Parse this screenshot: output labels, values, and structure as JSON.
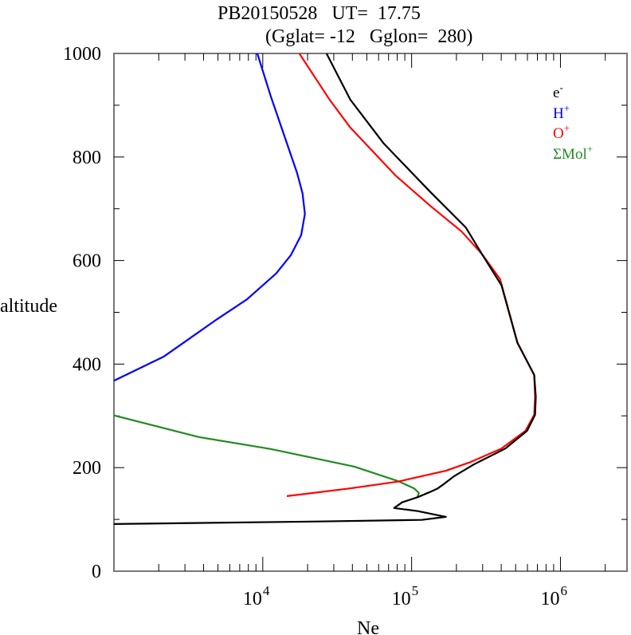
{
  "chart_data": {
    "type": "line",
    "title": "PB20150528   UT=  17.75",
    "subtitle": "(Gglat= -12   Gglon=  280)",
    "xlabel": "Ne",
    "ylabel": "altitude",
    "xscale": "log",
    "xlim": [
      1000,
      2800000
    ],
    "ylim": [
      0,
      1000
    ],
    "x_ticks": [
      {
        "value": 10000,
        "base": "10",
        "exp": "4"
      },
      {
        "value": 100000,
        "base": "10",
        "exp": "5"
      },
      {
        "value": 1000000,
        "base": "10",
        "exp": "6"
      }
    ],
    "y_ticks": [
      {
        "value": 0,
        "label": "0"
      },
      {
        "value": 200,
        "label": "200"
      },
      {
        "value": 400,
        "label": "400"
      },
      {
        "value": 600,
        "label": "600"
      },
      {
        "value": 800,
        "label": "800"
      },
      {
        "value": 1000,
        "label": "1000"
      }
    ],
    "grid": false,
    "legend_position": "top-right",
    "series": [
      {
        "name": "e-",
        "label_base": "e",
        "label_sup": "-",
        "color": "#000000",
        "points": [
          [
            26800,
            1000
          ],
          [
            38700,
            911
          ],
          [
            65000,
            826
          ],
          [
            133000,
            733
          ],
          [
            231000,
            664
          ],
          [
            296000,
            613
          ],
          [
            402000,
            552
          ],
          [
            514000,
            441
          ],
          [
            666000,
            379
          ],
          [
            683000,
            337
          ],
          [
            675000,
            302
          ],
          [
            596000,
            271
          ],
          [
            427000,
            237
          ],
          [
            261000,
            206
          ],
          [
            192000,
            183
          ],
          [
            166000,
            169
          ],
          [
            150000,
            160
          ],
          [
            133000,
            153
          ],
          [
            110000,
            143
          ],
          [
            86300,
            133
          ],
          [
            76300,
            122
          ],
          [
            110000,
            116
          ],
          [
            170000,
            105
          ],
          [
            117000,
            99
          ],
          [
            23700,
            96
          ],
          [
            1000,
            91
          ]
        ]
      },
      {
        "name": "H+",
        "label_base": "H",
        "label_sup": "+",
        "color": "#0000ff",
        "points": [
          [
            9190,
            1000
          ],
          [
            11300,
            918
          ],
          [
            17000,
            769
          ],
          [
            18500,
            730
          ],
          [
            19200,
            690
          ],
          [
            18100,
            649
          ],
          [
            15400,
            610
          ],
          [
            12300,
            575
          ],
          [
            7820,
            525
          ],
          [
            4950,
            487
          ],
          [
            2150,
            414
          ],
          [
            1000,
            368
          ]
        ]
      },
      {
        "name": "O+",
        "label_base": "O",
        "label_sup": "+",
        "color": "#ff0000",
        "points": [
          [
            17600,
            1000
          ],
          [
            28100,
            911
          ],
          [
            38700,
            857
          ],
          [
            78200,
            764
          ],
          [
            133000,
            706
          ],
          [
            217000,
            656
          ],
          [
            296000,
            613
          ],
          [
            393000,
            564
          ],
          [
            514000,
            441
          ],
          [
            666000,
            379
          ],
          [
            675000,
            337
          ],
          [
            666000,
            302
          ],
          [
            582000,
            271
          ],
          [
            402000,
            237
          ],
          [
            245000,
            210
          ],
          [
            170000,
            194
          ],
          [
            81100,
            173
          ],
          [
            38700,
            160
          ],
          [
            14500,
            145
          ]
        ]
      },
      {
        "name": "ΣMol+",
        "label_base": "ΣMol",
        "label_sup": "+",
        "color": "#228b22",
        "points": [
          [
            1000,
            301
          ],
          [
            3730,
            259
          ],
          [
            11300,
            236
          ],
          [
            41200,
            202
          ],
          [
            81100,
            174
          ],
          [
            104000,
            160
          ],
          [
            112000,
            151
          ],
          [
            109000,
            142
          ]
        ]
      }
    ]
  }
}
